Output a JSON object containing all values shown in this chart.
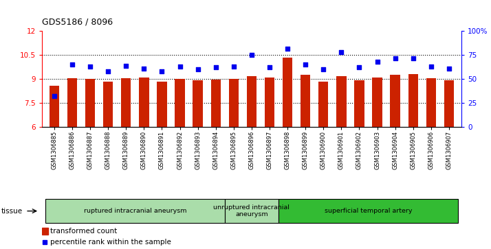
{
  "title": "GDS5186 / 8096",
  "samples": [
    "GSM1306885",
    "GSM1306886",
    "GSM1306887",
    "GSM1306888",
    "GSM1306889",
    "GSM1306890",
    "GSM1306891",
    "GSM1306892",
    "GSM1306893",
    "GSM1306894",
    "GSM1306895",
    "GSM1306896",
    "GSM1306897",
    "GSM1306898",
    "GSM1306899",
    "GSM1306900",
    "GSM1306901",
    "GSM1306902",
    "GSM1306903",
    "GSM1306904",
    "GSM1306905",
    "GSM1306906",
    "GSM1306907"
  ],
  "bar_values": [
    8.6,
    9.05,
    9.0,
    8.85,
    9.05,
    9.1,
    8.85,
    9.0,
    8.93,
    8.95,
    9.0,
    9.2,
    9.1,
    10.35,
    9.25,
    8.85,
    9.2,
    8.93,
    9.1,
    9.25,
    9.3,
    9.05,
    8.93
  ],
  "percentile_values": [
    32,
    65,
    63,
    58,
    64,
    61,
    58,
    63,
    60,
    62,
    63,
    75,
    62,
    82,
    65,
    60,
    78,
    62,
    68,
    72,
    72,
    63,
    61
  ],
  "bar_color": "#CC2200",
  "dot_color": "#0000EE",
  "ylim_left": [
    6,
    12
  ],
  "ylim_right": [
    0,
    100
  ],
  "yticks_left": [
    6,
    7.5,
    9,
    10.5,
    12
  ],
  "yticks_right": [
    0,
    25,
    50,
    75,
    100
  ],
  "grid_values": [
    7.5,
    9.0,
    10.5
  ],
  "group_defs": [
    {
      "label": "ruptured intracranial aneurysm",
      "start": 0,
      "end": 9,
      "color": "#aaddaa"
    },
    {
      "label": "unruptured intracranial\naneurysm",
      "start": 10,
      "end": 12,
      "color": "#aaddaa"
    },
    {
      "label": "superficial temporal artery",
      "start": 13,
      "end": 22,
      "color": "#33bb33"
    }
  ],
  "tissue_label": "tissue",
  "legend_bar_label": "transformed count",
  "legend_dot_label": "percentile rank within the sample"
}
